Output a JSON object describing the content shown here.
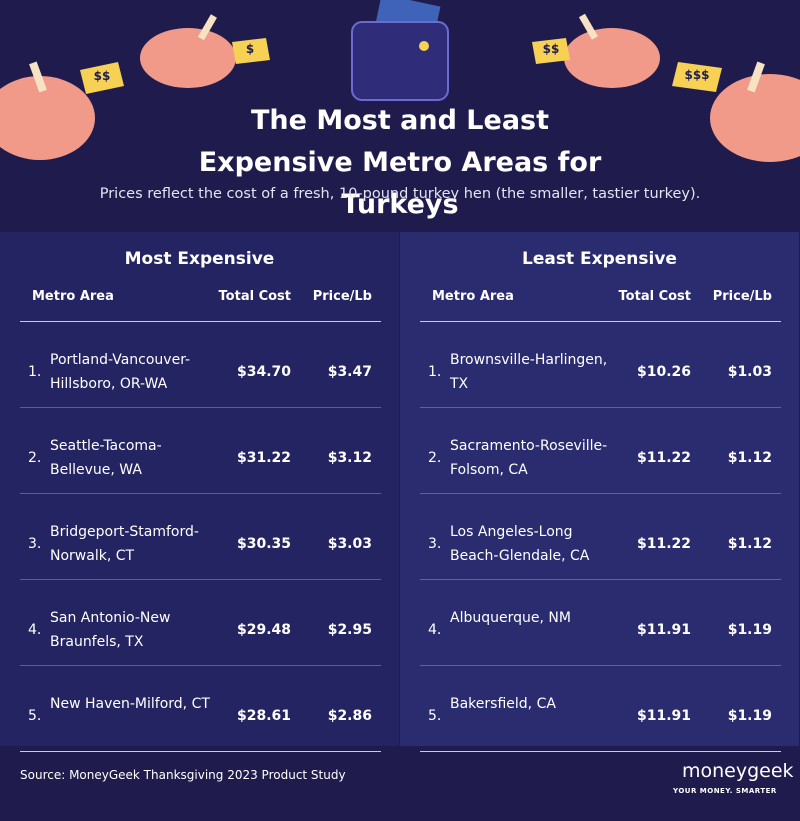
{
  "header": {
    "title": "The Most and Least Expensive Metro Areas for Turkeys",
    "subtitle": "Prices reflect the cost of a fresh, 10-pound turkey hen (the smaller, tastier turkey).",
    "tags": [
      "$$",
      "$",
      "$$",
      "$$$"
    ]
  },
  "tables": [
    {
      "title": "Most Expensive",
      "columns": [
        "Metro Area",
        "Total Cost",
        "Price/Lb"
      ],
      "rows": [
        [
          "1.",
          "Portland-Vancouver-Hillsboro, OR-WA",
          "$34.70",
          "$3.47"
        ],
        [
          "2.",
          "Seattle-Tacoma-Bellevue, WA",
          "$31.22",
          "$3.12"
        ],
        [
          "3.",
          "Bridgeport-Stamford-Norwalk, CT",
          "$30.35",
          "$3.03"
        ],
        [
          "4.",
          "San Antonio-New Braunfels, TX",
          "$29.48",
          "$2.95"
        ],
        [
          "5.",
          "New Haven-Milford, CT",
          "$28.61",
          "$2.86"
        ]
      ]
    },
    {
      "title": "Least Expensive",
      "columns": [
        "Metro Area",
        "Total Cost",
        "Price/Lb"
      ],
      "rows": [
        [
          "1.",
          "Brownsville-Harlingen, TX",
          "$10.26",
          "$1.03"
        ],
        [
          "2.",
          "Sacramento-Roseville-Folsom, CA",
          "$11.22",
          "$1.12"
        ],
        [
          "3.",
          "Los Angeles-Long Beach-Glendale, CA",
          "$11.22",
          "$1.12"
        ],
        [
          "4.",
          "Albuquerque, NM",
          "$11.91",
          "$1.19"
        ],
        [
          "5.",
          "Bakersfield, CA",
          "$11.91",
          "$1.19"
        ]
      ]
    }
  ],
  "footer": {
    "source": "Source: MoneyGeek Thanksgiving 2023 Product Study",
    "logo": "moneygeek",
    "tagline": "YOUR MONEY. SMARTER"
  }
}
